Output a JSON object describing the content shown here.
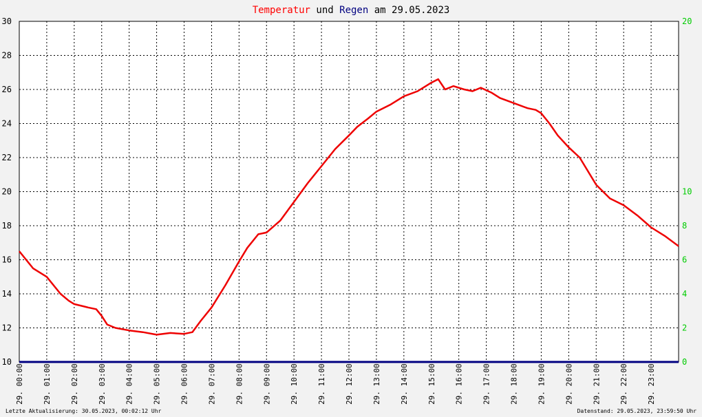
{
  "chart_data": {
    "type": "line",
    "title_parts": [
      {
        "text": "Temperatur",
        "color": "#ff0000"
      },
      {
        "text": " und ",
        "color": "#000000"
      },
      {
        "text": "Regen",
        "color": "#000080"
      },
      {
        "text": " am 29.05.2023",
        "color": "#000000"
      }
    ],
    "x_ticks": [
      "29. 00:00",
      "29. 01:00",
      "29. 02:00",
      "29. 03:00",
      "29. 04:00",
      "29. 05:00",
      "29. 06:00",
      "29. 07:00",
      "29. 08:00",
      "29. 09:00",
      "29. 10:00",
      "29. 11:00",
      "29. 12:00",
      "29. 13:00",
      "29. 14:00",
      "29. 15:00",
      "29. 16:00",
      "29. 17:00",
      "29. 18:00",
      "29. 19:00",
      "29. 20:00",
      "29. 21:00",
      "29. 22:00",
      "29. 23:00"
    ],
    "x_range_hours": [
      0,
      24
    ],
    "y_left": {
      "min": 10,
      "max": 30,
      "ticks": [
        10,
        12,
        14,
        16,
        18,
        20,
        22,
        24,
        26,
        28,
        30
      ]
    },
    "y_right": {
      "min": 0,
      "max": 20,
      "ticks": [
        0,
        2,
        4,
        6,
        8,
        10,
        20
      ]
    },
    "grid": true,
    "series": [
      {
        "name": "Temperatur",
        "color": "#ee0000",
        "axis": "left",
        "x": [
          0,
          0.5,
          1,
          1.5,
          1.8,
          2,
          2.5,
          2.8,
          3,
          3.2,
          3.5,
          4,
          4.5,
          5,
          5.5,
          6,
          6.3,
          6.6,
          7,
          7.5,
          8,
          8.3,
          8.7,
          9,
          9.5,
          10,
          10.5,
          11,
          11.5,
          12,
          12.3,
          12.7,
          13,
          13.5,
          14,
          14.5,
          15,
          15.25,
          15.5,
          15.8,
          16.2,
          16.5,
          16.8,
          17.2,
          17.5,
          18,
          18.5,
          18.8,
          19,
          19.3,
          19.6,
          20,
          20.4,
          21,
          21.5,
          22,
          22.5,
          23,
          23.5,
          24
        ],
        "y": [
          16.5,
          15.5,
          15.0,
          14.0,
          13.6,
          13.4,
          13.2,
          13.1,
          12.7,
          12.2,
          12.0,
          11.85,
          11.75,
          11.6,
          11.7,
          11.65,
          11.75,
          12.4,
          13.2,
          14.5,
          15.9,
          16.7,
          17.5,
          17.6,
          18.3,
          19.4,
          20.5,
          21.5,
          22.5,
          23.3,
          23.8,
          24.3,
          24.7,
          25.1,
          25.6,
          25.9,
          26.4,
          26.6,
          26.0,
          26.2,
          26.0,
          25.9,
          26.1,
          25.8,
          25.5,
          25.2,
          24.9,
          24.8,
          24.6,
          24.0,
          23.3,
          22.6,
          22.0,
          20.4,
          19.6,
          19.2,
          18.6,
          17.9,
          17.4,
          16.8
        ]
      },
      {
        "name": "Regen",
        "color": "#000080",
        "axis": "right",
        "x": [
          0,
          24
        ],
        "y": [
          0,
          0
        ]
      }
    ]
  },
  "footer": {
    "left": "Letzte Aktualisierung: 30.05.2023, 00:02:12 Uhr",
    "right": "Datenstand: 29.05.2023, 23:59:50 Uhr"
  }
}
